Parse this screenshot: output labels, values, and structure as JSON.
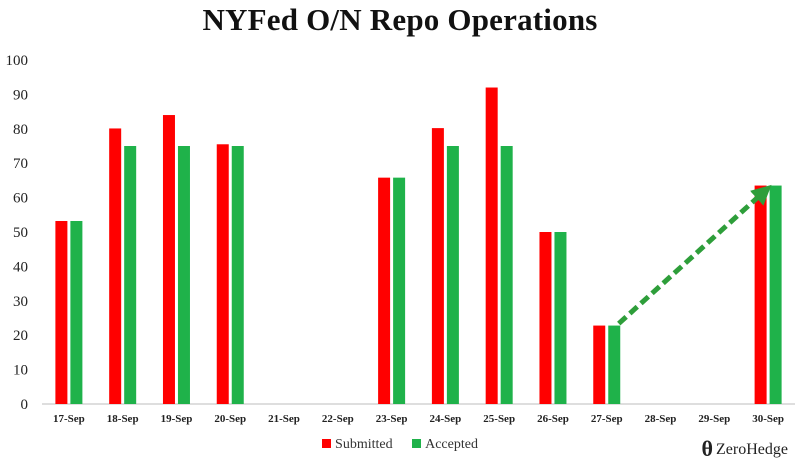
{
  "chart_data": {
    "type": "bar",
    "title": "NYFed O/N Repo Operations",
    "categories": [
      "17-Sep",
      "18-Sep",
      "19-Sep",
      "20-Sep",
      "21-Sep",
      "22-Sep",
      "23-Sep",
      "24-Sep",
      "25-Sep",
      "26-Sep",
      "27-Sep",
      "28-Sep",
      "29-Sep",
      "30-Sep"
    ],
    "series": [
      {
        "name": "Submitted",
        "color": "#ff0000",
        "values": [
          53.2,
          80.1,
          84.0,
          75.5,
          null,
          null,
          65.8,
          80.2,
          92.0,
          50.0,
          22.8,
          null,
          null,
          63.5
        ]
      },
      {
        "name": "Accepted",
        "color": "#1fb24a",
        "values": [
          53.2,
          75.0,
          75.0,
          75.0,
          null,
          null,
          65.8,
          75.0,
          75.0,
          50.0,
          22.8,
          null,
          null,
          63.5
        ]
      }
    ],
    "yticks": [
      0,
      10,
      20,
      30,
      40,
      50,
      60,
      70,
      80,
      90,
      100
    ],
    "ylim": [
      0,
      100
    ],
    "grid": false,
    "legend_position": "bottom-center",
    "annotation": {
      "type": "dashed-arrow",
      "color": "#2e9e3a",
      "from": {
        "x": "27-Sep",
        "y": 22.8
      },
      "to": {
        "x": "30-Sep",
        "y": 63.5
      }
    }
  },
  "brand": {
    "symbol": "θ",
    "name": "ZeroHedge"
  }
}
